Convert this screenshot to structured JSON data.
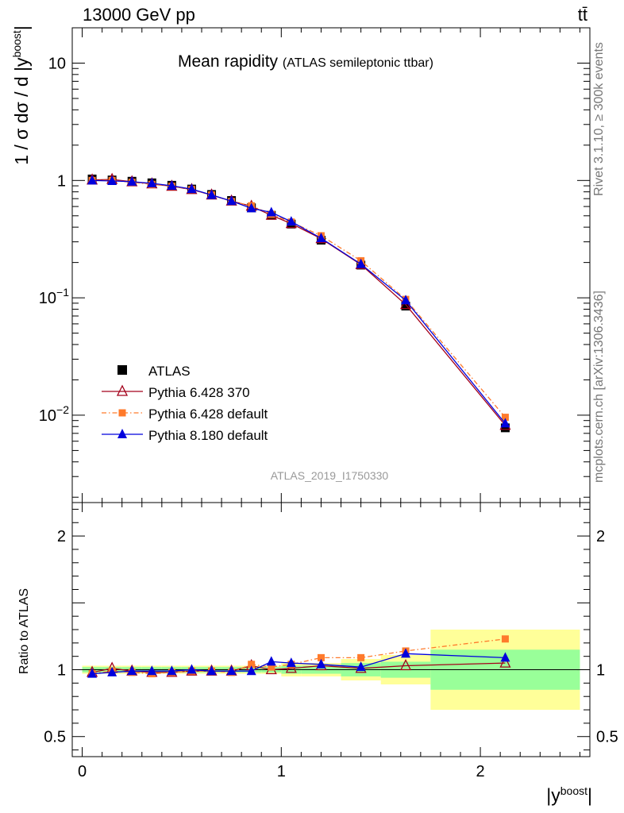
{
  "header": {
    "energy_label": "13000 GeV pp",
    "process_label": "tt̄"
  },
  "side_labels": {
    "rivet": "Rivet 3.1.10, ≥ 300k events",
    "mcplots": "mcplots.cern.ch [arXiv:1306.3436]"
  },
  "analysis_id": "ATLAS_2019_I1750330",
  "chart_data": {
    "type": "line",
    "title": "Mean rapidity",
    "subtitle": "(ATLAS semileptonic ttbar)",
    "xlabel": "|y",
    "xlabel_sup": "boost",
    "ylabel": "1 / σ dσ / d |y",
    "ylabel_sup": "boost",
    "ratio_ylabel": "Ratio to ATLAS",
    "xlim": [
      -0.05,
      2.55
    ],
    "main_ylim": [
      0.0018,
      20
    ],
    "main_yscale": "log",
    "ratio_ylim": [
      0.35,
      2.25
    ],
    "x_ticks": [
      "0",
      "1",
      "2"
    ],
    "main_y_ticks": [
      "10",
      "1",
      "10",
      "10"
    ],
    "main_y_tick_exps": [
      "",
      "",
      "−1",
      "−2"
    ],
    "ratio_y_ticks": [
      "2",
      "1",
      "0.5"
    ],
    "bins": [
      [
        0,
        0.1
      ],
      [
        0.1,
        0.2
      ],
      [
        0.2,
        0.3
      ],
      [
        0.3,
        0.4
      ],
      [
        0.4,
        0.5
      ],
      [
        0.5,
        0.6
      ],
      [
        0.6,
        0.7
      ],
      [
        0.7,
        0.8
      ],
      [
        0.8,
        0.9
      ],
      [
        0.9,
        1.0
      ],
      [
        1.0,
        1.1
      ],
      [
        1.1,
        1.3
      ],
      [
        1.3,
        1.5
      ],
      [
        1.5,
        1.75
      ],
      [
        1.75,
        2.5
      ]
    ],
    "x": [
      0.05,
      0.15,
      0.25,
      0.35,
      0.45,
      0.55,
      0.65,
      0.75,
      0.85,
      0.95,
      1.05,
      1.2,
      1.4,
      1.625,
      2.125
    ],
    "data": {
      "name": "ATLAS",
      "values": [
        1.03,
        1.01,
        0.985,
        0.955,
        0.91,
        0.845,
        0.76,
        0.675,
        0.585,
        0.505,
        0.425,
        0.31,
        0.19,
        0.085,
        0.0078
      ],
      "band_inner": [
        0.02,
        0.02,
        0.02,
        0.02,
        0.02,
        0.02,
        0.02,
        0.02,
        0.02,
        0.02,
        0.03,
        0.03,
        0.05,
        0.06,
        0.15
      ],
      "band_outer": [
        0.03,
        0.03,
        0.03,
        0.03,
        0.03,
        0.03,
        0.03,
        0.03,
        0.03,
        0.03,
        0.05,
        0.05,
        0.08,
        0.11,
        0.3
      ],
      "marker_color": "#000000"
    },
    "series": [
      {
        "name": "Pythia 6.428 370",
        "color": "#a3001a",
        "marker": "open-triangle",
        "line": "solid",
        "ratio": [
          0.98,
          1.01,
          0.99,
          0.98,
          0.98,
          0.99,
          0.99,
          0.99,
          1.03,
          1.0,
          1.01,
          1.03,
          1.01,
          1.03,
          1.05
        ],
        "values": [
          1.009,
          1.02,
          0.975,
          0.936,
          0.892,
          0.837,
          0.752,
          0.668,
          0.603,
          0.505,
          0.429,
          0.319,
          0.192,
          0.0876,
          0.00819
        ]
      },
      {
        "name": "Pythia 6.428 default",
        "color": "#ff7a2b",
        "marker": "filled-square",
        "line": "dashdot",
        "ratio": [
          0.97,
          0.99,
          0.98,
          0.97,
          0.98,
          0.99,
          0.99,
          0.98,
          1.04,
          1.02,
          1.04,
          1.09,
          1.09,
          1.14,
          1.23
        ],
        "values": [
          0.999,
          1.0,
          0.965,
          0.926,
          0.892,
          0.837,
          0.752,
          0.662,
          0.608,
          0.515,
          0.442,
          0.338,
          0.207,
          0.0969,
          0.00959
        ]
      },
      {
        "name": "Pythia 8.180 default",
        "color": "#0000dd",
        "marker": "filled-triangle",
        "line": "solid",
        "ratio": [
          0.97,
          0.98,
          0.99,
          0.99,
          0.99,
          1.0,
          0.99,
          0.99,
          0.99,
          1.06,
          1.05,
          1.04,
          1.02,
          1.12,
          1.09
        ],
        "values": [
          0.999,
          0.99,
          0.975,
          0.945,
          0.901,
          0.845,
          0.752,
          0.668,
          0.579,
          0.535,
          0.446,
          0.322,
          0.194,
          0.0952,
          0.0085
        ]
      }
    ],
    "colors": {
      "band_inner": "#99ff99",
      "band_outer": "#ffff99"
    },
    "legend_position": "lower-left",
    "grid": false
  }
}
